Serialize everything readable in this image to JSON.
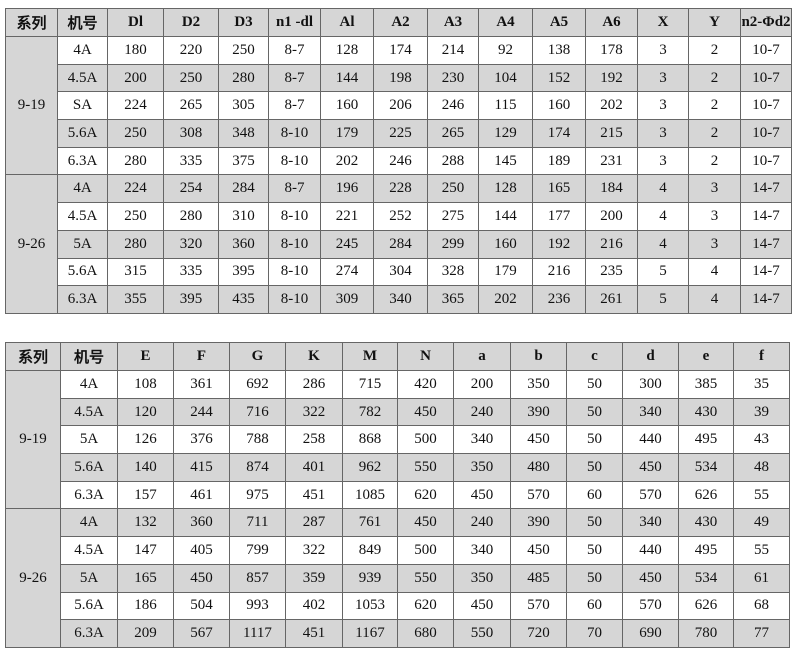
{
  "table1": {
    "headers": [
      "系列",
      "机号",
      "Dl",
      "D2",
      "D3",
      "n1 -dl",
      "Al",
      "A2",
      "A3",
      "A4",
      "A5",
      "A6",
      "X",
      "Y",
      "n2-Φd2"
    ],
    "groups": [
      {
        "series": "9-19",
        "rows": [
          [
            "4A",
            "180",
            "220",
            "250",
            "8-7",
            "128",
            "174",
            "214",
            "92",
            "138",
            "178",
            "3",
            "2",
            "10-7"
          ],
          [
            "4.5A",
            "200",
            "250",
            "280",
            "8-7",
            "144",
            "198",
            "230",
            "104",
            "152",
            "192",
            "3",
            "2",
            "10-7"
          ],
          [
            "SA",
            "224",
            "265",
            "305",
            "8-7",
            "160",
            "206",
            "246",
            "115",
            "160",
            "202",
            "3",
            "2",
            "10-7"
          ],
          [
            "5.6A",
            "250",
            "308",
            "348",
            "8-10",
            "179",
            "225",
            "265",
            "129",
            "174",
            "215",
            "3",
            "2",
            "10-7"
          ],
          [
            "6.3A",
            "280",
            "335",
            "375",
            "8-10",
            "202",
            "246",
            "288",
            "145",
            "189",
            "231",
            "3",
            "2",
            "10-7"
          ]
        ]
      },
      {
        "series": "9-26",
        "rows": [
          [
            "4A",
            "224",
            "254",
            "284",
            "8-7",
            "196",
            "228",
            "250",
            "128",
            "165",
            "184",
            "4",
            "3",
            "14-7"
          ],
          [
            "4.5A",
            "250",
            "280",
            "310",
            "8-10",
            "221",
            "252",
            "275",
            "144",
            "177",
            "200",
            "4",
            "3",
            "14-7"
          ],
          [
            "5A",
            "280",
            "320",
            "360",
            "8-10",
            "245",
            "284",
            "299",
            "160",
            "192",
            "216",
            "4",
            "3",
            "14-7"
          ],
          [
            "5.6A",
            "315",
            "335",
            "395",
            "8-10",
            "274",
            "304",
            "328",
            "179",
            "216",
            "235",
            "5",
            "4",
            "14-7"
          ],
          [
            "6.3A",
            "355",
            "395",
            "435",
            "8-10",
            "309",
            "340",
            "365",
            "202",
            "236",
            "261",
            "5",
            "4",
            "14-7"
          ]
        ]
      }
    ]
  },
  "table2": {
    "headers": [
      "系列",
      "机号",
      "E",
      "F",
      "G",
      "K",
      "M",
      "N",
      "a",
      "b",
      "c",
      "d",
      "e",
      "f"
    ],
    "groups": [
      {
        "series": "9-19",
        "rows": [
          [
            "4A",
            "108",
            "361",
            "692",
            "286",
            "715",
            "420",
            "200",
            "350",
            "50",
            "300",
            "385",
            "35"
          ],
          [
            "4.5A",
            "120",
            "244",
            "716",
            "322",
            "782",
            "450",
            "240",
            "390",
            "50",
            "340",
            "430",
            "39"
          ],
          [
            "5A",
            "126",
            "376",
            "788",
            "258",
            "868",
            "500",
            "340",
            "450",
            "50",
            "440",
            "495",
            "43"
          ],
          [
            "5.6A",
            "140",
            "415",
            "874",
            "401",
            "962",
            "550",
            "350",
            "480",
            "50",
            "450",
            "534",
            "48"
          ],
          [
            "6.3A",
            "157",
            "461",
            "975",
            "451",
            "1085",
            "620",
            "450",
            "570",
            "60",
            "570",
            "626",
            "55"
          ]
        ]
      },
      {
        "series": "9-26",
        "rows": [
          [
            "4A",
            "132",
            "360",
            "711",
            "287",
            "761",
            "450",
            "240",
            "390",
            "50",
            "340",
            "430",
            "49"
          ],
          [
            "4.5A",
            "147",
            "405",
            "799",
            "322",
            "849",
            "500",
            "340",
            "450",
            "50",
            "440",
            "495",
            "55"
          ],
          [
            "5A",
            "165",
            "450",
            "857",
            "359",
            "939",
            "550",
            "350",
            "485",
            "50",
            "450",
            "534",
            "61"
          ],
          [
            "5.6A",
            "186",
            "504",
            "993",
            "402",
            "1053",
            "620",
            "450",
            "570",
            "60",
            "570",
            "626",
            "68"
          ],
          [
            "6.3A",
            "209",
            "567",
            "1117",
            "451",
            "1167",
            "680",
            "550",
            "720",
            "70",
            "690",
            "780",
            "77"
          ]
        ]
      }
    ]
  }
}
